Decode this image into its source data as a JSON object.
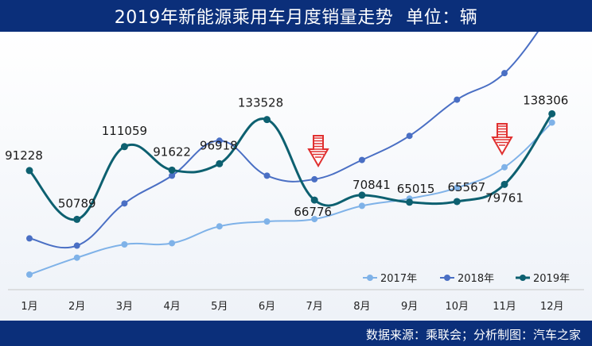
{
  "header": {
    "title": "2019年新能源乘用车月度销量走势",
    "unit": "单位：辆"
  },
  "footer": {
    "source": "数据来源：乘联会；分析制图：汽车之家"
  },
  "colors": {
    "header_bg": "#0b2f7a",
    "s2017": "#7fb2e8",
    "s2018": "#4a6fc4",
    "s2019": "#0d6070",
    "arrow": "#e03030"
  },
  "icons": [
    "down-arrow-icon",
    "down-arrow-icon"
  ],
  "chart_data": {
    "type": "line",
    "title": "2019年新能源乘用车月度销量走势 单位：辆",
    "categories": [
      "1月",
      "2月",
      "3月",
      "4月",
      "5月",
      "6月",
      "7月",
      "8月",
      "9月",
      "10月",
      "11月",
      "12月"
    ],
    "series": [
      {
        "name": "2017年",
        "values": [
          5000,
          19000,
          30000,
          31000,
          45000,
          49000,
          51000,
          62000,
          68000,
          77000,
          94000,
          131000
        ]
      },
      {
        "name": "2018年",
        "values": [
          35000,
          29000,
          64000,
          87000,
          116000,
          87000,
          84000,
          100000,
          120000,
          150000,
          172000,
          223000
        ]
      },
      {
        "name": "2019年",
        "values": [
          91228,
          50789,
          111059,
          91622,
          96918,
          133528,
          66776,
          70841,
          65015,
          65567,
          79761,
          138306
        ]
      }
    ],
    "data_labels": [
      "91228",
      "50789",
      "111059",
      "91622",
      "96918",
      "133528",
      "66776",
      "70841",
      "65015",
      "65567",
      "79761",
      "138306"
    ],
    "legend_position": "bottom-right",
    "grid": false
  }
}
